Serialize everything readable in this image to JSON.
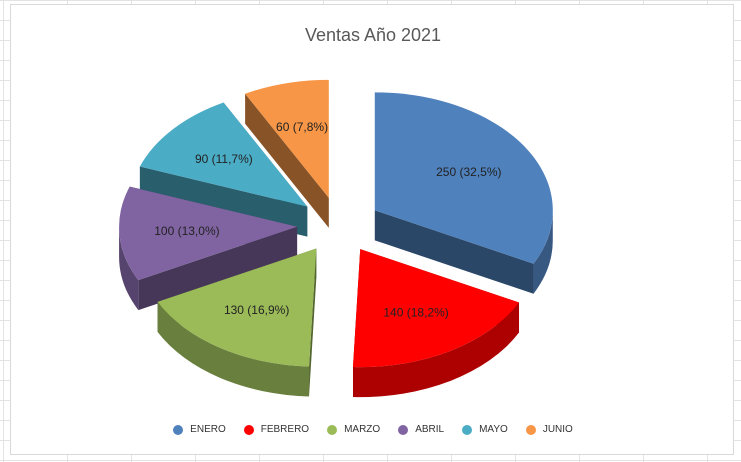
{
  "chart_data": {
    "type": "pie",
    "style": "3d-exploded",
    "title": "Ventas Año 2021",
    "categories": [
      "ENERO",
      "FEBRERO",
      "MARZO",
      "ABRIL",
      "MAYO",
      "JUNIO"
    ],
    "values": [
      250,
      140,
      130,
      100,
      90,
      60
    ],
    "data_labels": [
      "250 (32,5%)",
      "140 (18,2%)",
      "130 (16,9%)",
      "100 (13,0%)",
      "90 (11,7%)",
      "60 (7,8%)"
    ],
    "colors": [
      "#4F81BD",
      "#FF0000",
      "#9BBB59",
      "#8064A2",
      "#4BACC6",
      "#F79646"
    ],
    "legend_position": "bottom"
  }
}
